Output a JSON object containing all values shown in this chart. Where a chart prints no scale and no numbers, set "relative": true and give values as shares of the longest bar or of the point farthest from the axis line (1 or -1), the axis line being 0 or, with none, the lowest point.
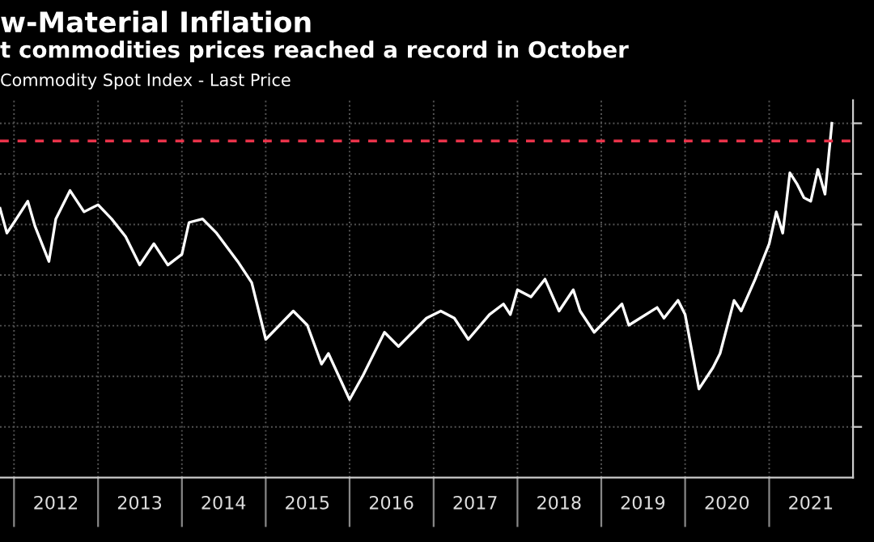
{
  "chart_data": {
    "type": "line",
    "title": "w-Material Inflation",
    "subtitle": "t commodities prices reached a record in October",
    "x": [
      "2011-11",
      "2011-12",
      "2012-01",
      "2012-03",
      "2012-04",
      "2012-06",
      "2012-07",
      "2012-09",
      "2012-11",
      "2013-01",
      "2013-03",
      "2013-05",
      "2013-07",
      "2013-09",
      "2013-11",
      "2014-01",
      "2014-02",
      "2014-04",
      "2014-06",
      "2014-09",
      "2014-11",
      "2015-01",
      "2015-05",
      "2015-07",
      "2015-09",
      "2015-10",
      "2016-01",
      "2016-03",
      "2016-06",
      "2016-08",
      "2016-10",
      "2016-12",
      "2017-02",
      "2017-04",
      "2017-06",
      "2017-09",
      "2017-11",
      "2017-12",
      "2018-01",
      "2018-03",
      "2018-05",
      "2018-07",
      "2018-09",
      "2018-10",
      "2018-12",
      "2019-04",
      "2019-05",
      "2019-09",
      "2019-10",
      "2019-12",
      "2020-01",
      "2020-03",
      "2020-05",
      "2020-06",
      "2020-08",
      "2020-09",
      "2020-11",
      "2021-01",
      "2021-02",
      "2021-03",
      "2021-04",
      "2021-05",
      "2021-06",
      "2021-07",
      "2021-08",
      "2021-09",
      "2021-10"
    ],
    "series": [
      {
        "name": "Commodity Spot Index - Last Price",
        "color": "#ffffff",
        "values": [
          0.76,
          0.69,
          0.72,
          0.78,
          0.71,
          0.61,
          0.73,
          0.81,
          0.75,
          0.77,
          0.73,
          0.68,
          0.6,
          0.66,
          0.6,
          0.63,
          0.72,
          0.73,
          0.69,
          0.61,
          0.55,
          0.39,
          0.47,
          0.43,
          0.32,
          0.35,
          0.22,
          0.29,
          0.41,
          0.37,
          0.41,
          0.45,
          0.47,
          0.45,
          0.39,
          0.46,
          0.49,
          0.46,
          0.53,
          0.51,
          0.56,
          0.47,
          0.53,
          0.47,
          0.41,
          0.49,
          0.43,
          0.48,
          0.45,
          0.5,
          0.46,
          0.25,
          0.31,
          0.35,
          0.5,
          0.47,
          0.56,
          0.66,
          0.75,
          0.69,
          0.86,
          0.83,
          0.79,
          0.78,
          0.87,
          0.8,
          1
        ]
      }
    ],
    "relative": true,
    "xlim": [
      "2011-11-01",
      "2022-01-01"
    ],
    "xticks": [
      {
        "value": "2012-01-01",
        "label": null
      },
      {
        "value": "2012-07-01",
        "label": "2012"
      },
      {
        "value": "2013-01-01",
        "label": null
      },
      {
        "value": "2013-07-01",
        "label": "2013"
      },
      {
        "value": "2014-01-01",
        "label": null
      },
      {
        "value": "2014-07-01",
        "label": "2014"
      },
      {
        "value": "2015-01-01",
        "label": null
      },
      {
        "value": "2015-07-01",
        "label": "2015"
      },
      {
        "value": "2016-01-01",
        "label": null
      },
      {
        "value": "2016-07-01",
        "label": "2016"
      },
      {
        "value": "2017-01-01",
        "label": null
      },
      {
        "value": "2017-07-01",
        "label": "2017"
      },
      {
        "value": "2018-01-01",
        "label": null
      },
      {
        "value": "2018-07-01",
        "label": "2018"
      },
      {
        "value": "2019-01-01",
        "label": null
      },
      {
        "value": "2019-07-01",
        "label": "2019"
      },
      {
        "value": "2020-01-01",
        "label": null
      },
      {
        "value": "2020-07-01",
        "label": "2020"
      },
      {
        "value": "2021-01-01",
        "label": null
      },
      {
        "value": "2021-07-01",
        "label": "2021"
      }
    ],
    "ref_lines": [
      {
        "axis": "y",
        "value": 0.95,
        "color": "#e8334a",
        "line_style": "dashed"
      }
    ],
    "grid": true,
    "legend": false,
    "marker": "none",
    "line_style": "solid"
  }
}
